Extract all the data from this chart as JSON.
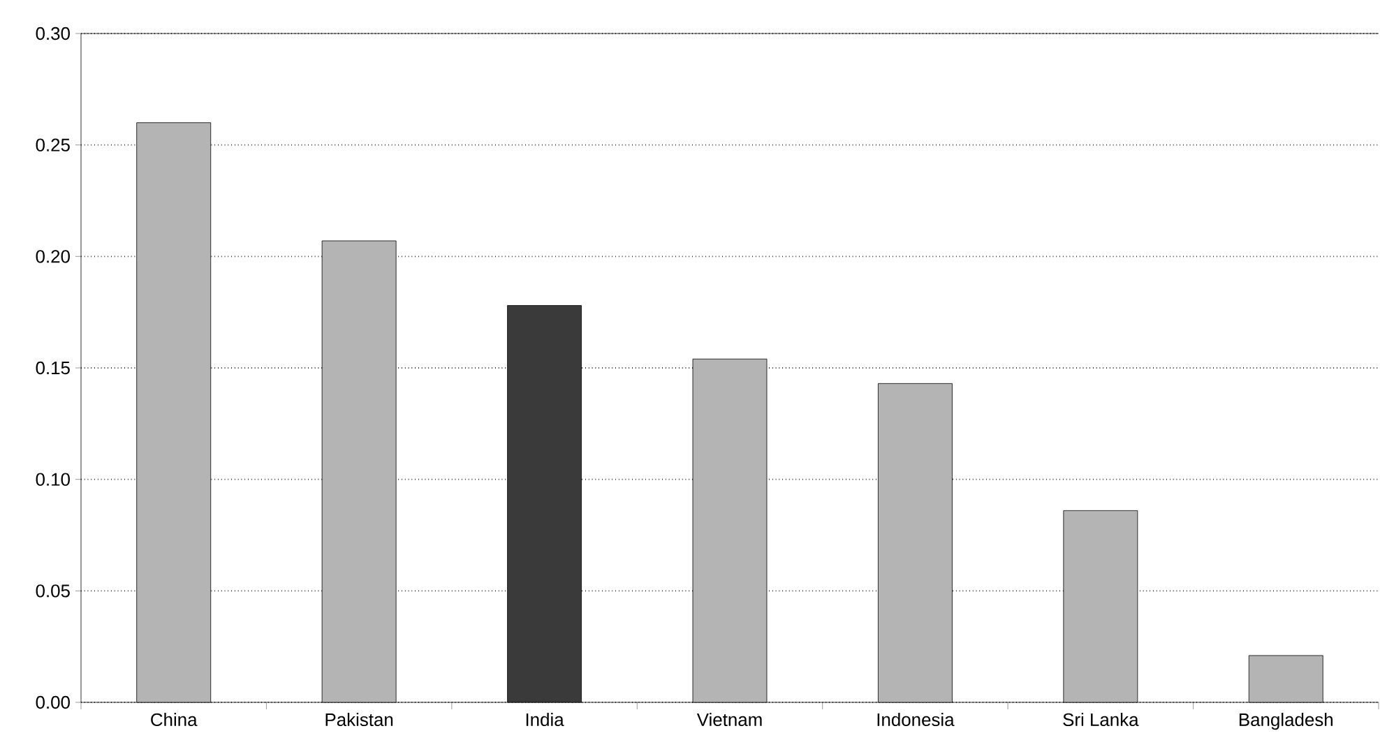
{
  "chart_data": {
    "type": "bar",
    "categories": [
      "China",
      "Pakistan",
      "India",
      "Vietnam",
      "Indonesia",
      "Sri Lanka",
      "Bangladesh"
    ],
    "values": [
      0.26,
      0.207,
      0.178,
      0.154,
      0.143,
      0.086,
      0.021
    ],
    "colors": [
      "#b4b4b4",
      "#b4b4b4",
      "#3a3a3a",
      "#b4b4b4",
      "#b4b4b4",
      "#b4b4b4",
      "#b4b4b4"
    ],
    "ylim": [
      0,
      0.3
    ],
    "yticks": [
      {
        "value": 0,
        "label": "0.00"
      },
      {
        "value": 0.05,
        "label": "0.05"
      },
      {
        "value": 0.1,
        "label": "0.10"
      },
      {
        "value": 0.15,
        "label": "0.15"
      },
      {
        "value": 0.2,
        "label": "0.20"
      },
      {
        "value": 0.25,
        "label": "0.25"
      },
      {
        "value": 0.3,
        "label": "0.30"
      }
    ],
    "grid": "y"
  }
}
